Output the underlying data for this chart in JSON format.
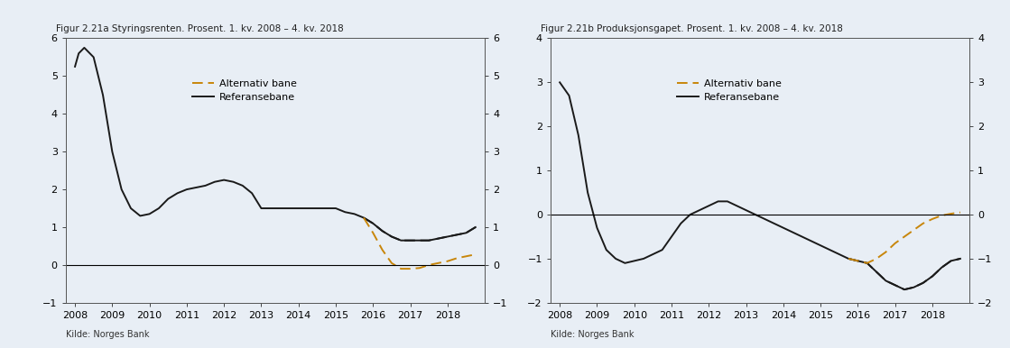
{
  "fig_title_a": "Figur 2.21a Styringsrenten. Prosent. 1. kv. 2008 – 4. kv. 2018",
  "fig_title_b": "Figur 2.21b Produksjonsgapet. Prosent. 1. kv. 2008 – 4. kv. 2018",
  "source_text": "Kilde: Norges Bank",
  "background_color": "#e8eef5",
  "plot_bg_color": "#e8eef5",
  "ref_color": "#1a1a1a",
  "alt_color": "#c8860a",
  "legend_labels": [
    "Alternativ bane",
    "Referansebane"
  ],
  "chart_a": {
    "ylim": [
      -1,
      6
    ],
    "yticks": [
      -1,
      0,
      1,
      2,
      3,
      4,
      5,
      6
    ],
    "xmin": 2007.75,
    "xmax": 2019.0,
    "xticks": [
      2008,
      2009,
      2010,
      2011,
      2012,
      2013,
      2014,
      2015,
      2016,
      2017,
      2018
    ],
    "ref_solid_x": [
      2008.0,
      2008.1,
      2008.25,
      2008.5,
      2008.75,
      2009.0,
      2009.25,
      2009.5,
      2009.75,
      2010.0,
      2010.25,
      2010.5,
      2010.75,
      2011.0,
      2011.25,
      2011.5,
      2011.75,
      2012.0,
      2012.25,
      2012.5,
      2012.75,
      2013.0,
      2013.25,
      2013.5,
      2013.75,
      2014.0,
      2014.25,
      2014.5,
      2014.75,
      2015.0,
      2015.25,
      2015.5,
      2015.75,
      2016.0,
      2016.25,
      2016.5,
      2016.75,
      2017.0,
      2017.25,
      2017.5,
      2017.75,
      2018.0,
      2018.25,
      2018.5,
      2018.75
    ],
    "ref_solid_y": [
      5.25,
      5.6,
      5.75,
      5.5,
      4.5,
      3.0,
      2.0,
      1.5,
      1.3,
      1.35,
      1.5,
      1.75,
      1.9,
      2.0,
      2.05,
      2.1,
      2.2,
      2.25,
      2.2,
      2.1,
      1.9,
      1.5,
      1.5,
      1.5,
      1.5,
      1.5,
      1.5,
      1.5,
      1.5,
      1.5,
      1.4,
      1.35,
      1.25,
      1.1,
      0.9,
      0.75,
      0.65,
      0.65,
      0.65,
      0.65,
      0.7,
      0.75,
      0.8,
      0.85,
      1.0
    ],
    "ref_dash_x": [
      2015.75,
      2016.0,
      2016.25,
      2016.5,
      2016.75,
      2017.0,
      2017.25,
      2017.5,
      2017.75,
      2018.0,
      2018.25,
      2018.5,
      2018.75
    ],
    "ref_dash_y": [
      1.25,
      1.1,
      0.9,
      0.75,
      0.65,
      0.65,
      0.65,
      0.65,
      0.7,
      0.75,
      0.8,
      0.85,
      1.0
    ],
    "alt_x": [
      2015.75,
      2016.0,
      2016.25,
      2016.5,
      2016.75,
      2017.0,
      2017.25,
      2017.5,
      2017.75,
      2018.0,
      2018.25,
      2018.5,
      2018.75
    ],
    "alt_y": [
      1.25,
      0.85,
      0.4,
      0.05,
      -0.1,
      -0.1,
      -0.08,
      0.0,
      0.05,
      0.1,
      0.18,
      0.23,
      0.28
    ]
  },
  "chart_b": {
    "ylim": [
      -2,
      4
    ],
    "yticks": [
      -2,
      -1,
      0,
      1,
      2,
      3,
      4
    ],
    "xmin": 2007.75,
    "xmax": 2019.0,
    "xticks": [
      2008,
      2009,
      2010,
      2011,
      2012,
      2013,
      2014,
      2015,
      2016,
      2017,
      2018
    ],
    "ref_solid_x": [
      2008.0,
      2008.25,
      2008.5,
      2008.75,
      2009.0,
      2009.25,
      2009.5,
      2009.75,
      2010.0,
      2010.25,
      2010.5,
      2010.75,
      2011.0,
      2011.25,
      2011.5,
      2011.75,
      2012.0,
      2012.25,
      2012.5,
      2012.75,
      2013.0,
      2013.25,
      2013.5,
      2013.75,
      2014.0,
      2014.25,
      2014.5,
      2014.75,
      2015.0,
      2015.25,
      2015.5,
      2015.75,
      2016.0,
      2016.25,
      2016.5,
      2016.75,
      2017.0,
      2017.25,
      2017.5,
      2017.75,
      2018.0,
      2018.25,
      2018.5,
      2018.75
    ],
    "ref_solid_y": [
      3.0,
      2.7,
      1.8,
      0.5,
      -0.3,
      -0.8,
      -1.0,
      -1.1,
      -1.05,
      -1.0,
      -0.9,
      -0.8,
      -0.5,
      -0.2,
      0.0,
      0.1,
      0.2,
      0.3,
      0.3,
      0.2,
      0.1,
      0.0,
      -0.1,
      -0.2,
      -0.3,
      -0.4,
      -0.5,
      -0.6,
      -0.7,
      -0.8,
      -0.9,
      -1.0,
      -1.05,
      -1.1,
      -1.3,
      -1.5,
      -1.6,
      -1.7,
      -1.65,
      -1.55,
      -1.4,
      -1.2,
      -1.05,
      -1.0
    ],
    "ref_dash_x": [
      2015.75,
      2016.0,
      2016.25,
      2016.5,
      2016.75,
      2017.0,
      2017.25,
      2017.5,
      2017.75,
      2018.0,
      2018.25,
      2018.5,
      2018.75
    ],
    "ref_dash_y": [
      -1.0,
      -1.05,
      -1.1,
      -1.3,
      -1.5,
      -1.6,
      -1.7,
      -1.65,
      -1.55,
      -1.4,
      -1.2,
      -1.05,
      -1.0
    ],
    "alt_x": [
      2015.75,
      2016.0,
      2016.25,
      2016.5,
      2016.75,
      2017.0,
      2017.25,
      2017.5,
      2017.75,
      2018.0,
      2018.25,
      2018.5,
      2018.75
    ],
    "alt_y": [
      -1.0,
      -1.05,
      -1.1,
      -1.0,
      -0.85,
      -0.65,
      -0.5,
      -0.35,
      -0.2,
      -0.1,
      -0.02,
      0.02,
      0.05
    ]
  }
}
